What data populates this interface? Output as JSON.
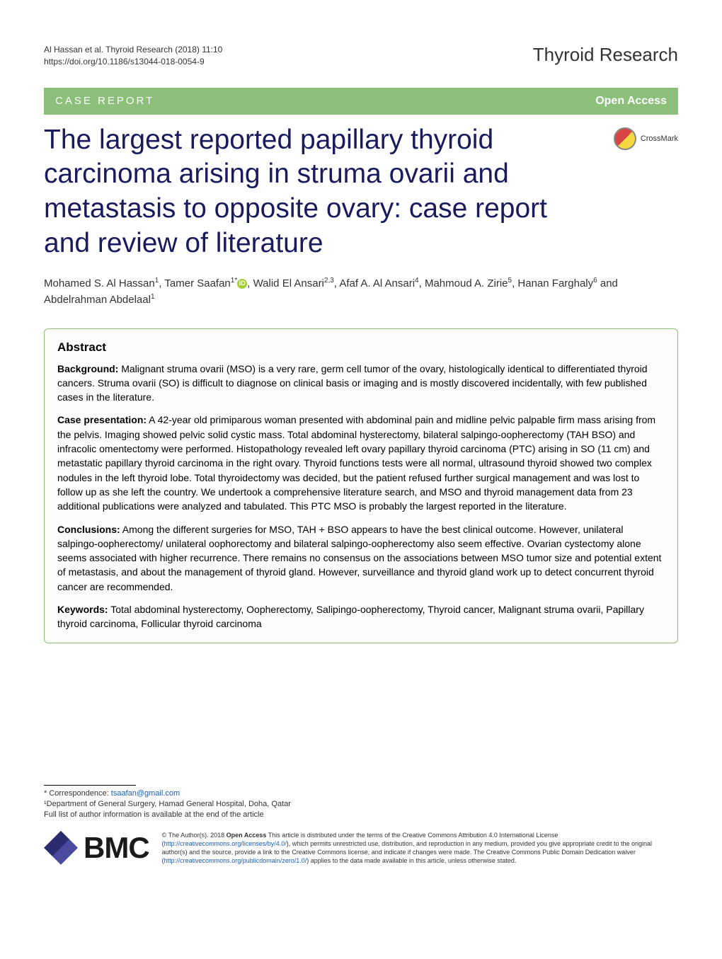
{
  "header": {
    "citation": "Al Hassan et al. Thyroid Research  (2018) 11:10",
    "doi": "https://doi.org/10.1186/s13044-018-0054-9",
    "journal": "Thyroid Research"
  },
  "category_bar": {
    "label": "CASE REPORT",
    "access": "Open Access"
  },
  "crossmark": {
    "label": "CrossMark"
  },
  "article": {
    "title": "The largest reported papillary thyroid carcinoma arising in struma ovarii and metastasis to opposite ovary: case report and review of literature"
  },
  "authors": {
    "list": [
      {
        "name": "Mohamed S. Al Hassan",
        "affil": "1"
      },
      {
        "name": "Tamer Saafan",
        "affil": "1*",
        "orcid": true
      },
      {
        "name": "Walid El Ansari",
        "affil": "2,3"
      },
      {
        "name": "Afaf A. Al Ansari",
        "affil": "4"
      },
      {
        "name": "Mahmoud A. Zirie",
        "affil": "5"
      },
      {
        "name": "Hanan Farghaly",
        "affil": "6"
      },
      {
        "name": "Abdelrahman Abdelaal",
        "affil": "1"
      }
    ],
    "rendered": "Mohamed S. Al Hassan¹, Tamer Saafan¹* , Walid El Ansari²,³, Afaf A. Al Ansari⁴, Mahmoud A. Zirie⁵, Hanan Farghaly⁶ and Abdelrahman Abdelaal¹"
  },
  "abstract": {
    "heading": "Abstract",
    "background_label": "Background:",
    "background": " Malignant struma ovarii (MSO) is a very rare, germ cell tumor of the ovary, histologically identical to differentiated thyroid cancers. Struma ovarii (SO) is difficult to diagnose on clinical basis or imaging and is mostly discovered incidentally, with few published cases in the literature.",
    "case_label": "Case presentation:",
    "case": " A 42-year old primiparous woman presented with abdominal pain and midline pelvic palpable firm mass arising from the pelvis. Imaging showed pelvic solid cystic mass. Total abdominal hysterectomy, bilateral salpingo-oopherectomy (TAH BSO) and infracolic omentectomy were performed. Histopathology revealed left ovary papillary thyroid carcinoma (PTC) arising in SO (11 cm) and metastatic papillary thyroid carcinoma in the right ovary. Thyroid functions tests were all normal, ultrasound thyroid showed two complex nodules in the left thyroid lobe. Total thyroidectomy was decided, but the patient refused further surgical management and was lost to follow up as she left the country. We undertook a comprehensive literature search, and MSO and thyroid management data from 23 additional publications were analyzed and tabulated. This PTC MSO is probably the largest reported in the literature.",
    "conclusions_label": "Conclusions:",
    "conclusions": " Among the different surgeries for MSO, TAH + BSO appears to have the best clinical outcome. However, unilateral salpingo-oopherectomy/ unilateral oophorectomy and bilateral salpingo-oopherectomy also seem effective. Ovarian cystectomy alone seems associated with higher recurrence. There remains no consensus on the associations between MSO tumor size and potential extent of metastasis, and about the management of thyroid gland. However, surveillance and thyroid gland work up to detect concurrent thyroid cancer are recommended.",
    "keywords_label": "Keywords:",
    "keywords": " Total abdominal hysterectomy, Oopherectomy, Salipingo-oopherectomy, Thyroid cancer, Malignant struma ovarii, Papillary thyroid carcinoma, Follicular thyroid carcinoma"
  },
  "footer": {
    "correspondence_label": "* Correspondence: ",
    "correspondence_email": "tsaafan@gmail.com",
    "affiliation_1": "¹Department of General Surgery, Hamad General Hospital, Doha, Qatar",
    "full_list_note": "Full list of author information is available at the end of the article",
    "bmc": "BMC",
    "license_prefix": "© The Author(s). 2018 ",
    "open_access_bold": "Open Access",
    "license_text_1": " This article is distributed under the terms of the Creative Commons Attribution 4.0 International License (",
    "license_url_1": "http://creativecommons.org/licenses/by/4.0/",
    "license_text_2": "), which permits unrestricted use, distribution, and reproduction in any medium, provided you give appropriate credit to the original author(s) and the source, provide a link to the Creative Commons license, and indicate if changes were made. The Creative Commons Public Domain Dedication waiver (",
    "license_url_2": "http://creativecommons.org/publicdomain/zero/1.0/",
    "license_text_3": ") applies to the data made available in this article, unless otherwise stated."
  },
  "styling": {
    "category_bg": "#8bbf7a",
    "category_text": "#ffffff",
    "title_color": "#1a1a5e",
    "title_fontsize": 39,
    "body_text": "#000000",
    "link_color": "#1a5db8",
    "abstract_border": "#8bbf7a",
    "abstract_bg": "#fcfdfb",
    "page_bg": "#ffffff",
    "bmc_diamond_colors": [
      "#2b2b6f",
      "#4a4a9f"
    ],
    "orcid_bg": "#a6ce39",
    "crossmark_colors": [
      "#d94545",
      "#f5d742"
    ]
  }
}
